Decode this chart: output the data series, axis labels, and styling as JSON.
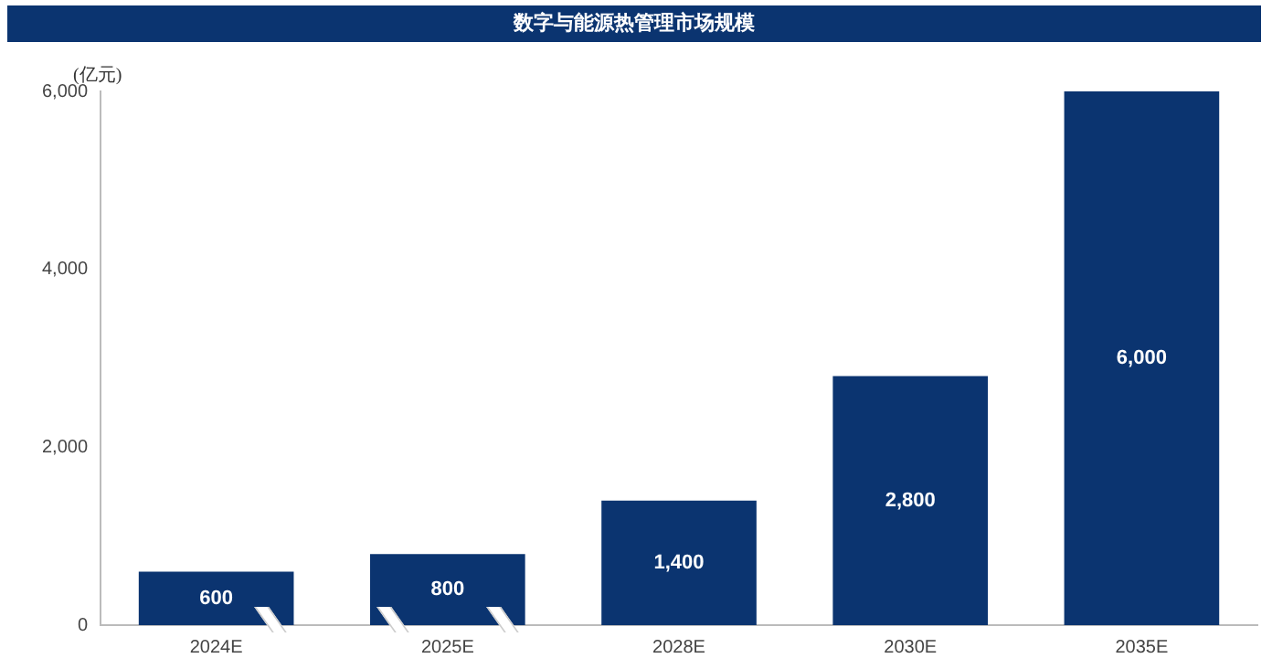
{
  "chart_data": {
    "type": "bar",
    "title": "数字与能源热管理市场规模",
    "ylabel": "(亿元)",
    "categories": [
      "2024E",
      "2025E",
      "2028E",
      "2030E",
      "2035E"
    ],
    "values": [
      600,
      800,
      1400,
      2800,
      6000
    ],
    "color": "#0b3470",
    "ylim": [
      0,
      6000
    ],
    "yticks": [
      {
        "value": 0,
        "label": "0"
      },
      {
        "value": 2000,
        "label": "2,000"
      },
      {
        "value": 4000,
        "label": "4,000"
      },
      {
        "value": 6000,
        "label": "6,000"
      }
    ],
    "value_labels": [
      "600",
      "800",
      "1,400",
      "2,800",
      "6,000"
    ],
    "grid": false,
    "legend": false
  }
}
